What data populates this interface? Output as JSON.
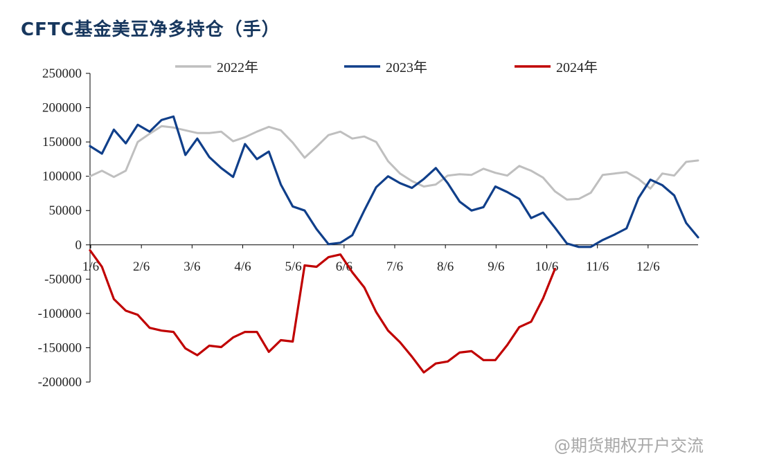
{
  "title": "CFTC基金美豆净多持仓（手）",
  "watermark": "@期货期权开户交流",
  "chart_data": {
    "type": "line",
    "title": "CFTC基金美豆净多持仓（手）",
    "xlabel": "",
    "ylabel": "",
    "x_tick_labels": [
      "1/6",
      "2/6",
      "3/6",
      "4/6",
      "5/6",
      "6/6",
      "7/6",
      "8/6",
      "9/6",
      "10/6",
      "11/6",
      "12/6"
    ],
    "ylim": [
      -200000,
      250000
    ],
    "y_ticks": [
      250000,
      200000,
      150000,
      100000,
      50000,
      0,
      -50000,
      -100000,
      -150000,
      -200000
    ],
    "legend_position": "top",
    "weeks_total": 52,
    "series": [
      {
        "name": "2022年",
        "color": "#bfbfbf",
        "values": [
          100000,
          108000,
          99000,
          108000,
          150000,
          162000,
          173000,
          171000,
          167000,
          163000,
          163000,
          165000,
          151000,
          157000,
          165000,
          172000,
          167000,
          149000,
          127000,
          143000,
          160000,
          165000,
          155000,
          158000,
          150000,
          122000,
          104000,
          93000,
          85000,
          88000,
          101000,
          103000,
          102000,
          111000,
          105000,
          101000,
          115000,
          108000,
          98000,
          78000,
          66000,
          67000,
          76000,
          102000,
          104000,
          106000,
          96000,
          82000,
          104000,
          101000,
          121000,
          123000
        ]
      },
      {
        "name": "2023年",
        "color": "#103f8a",
        "values": [
          144000,
          133000,
          168000,
          148000,
          175000,
          165000,
          182000,
          187000,
          131000,
          155000,
          128000,
          112000,
          99000,
          147000,
          125000,
          136000,
          88000,
          56000,
          50000,
          23000,
          1000,
          3000,
          14000,
          50000,
          84000,
          100000,
          90000,
          83000,
          96000,
          112000,
          90000,
          63000,
          50000,
          55000,
          85000,
          77000,
          67000,
          39000,
          47000,
          25000,
          2000,
          -3000,
          -3000,
          7000,
          15000,
          24000,
          68000,
          95000,
          87000,
          72000,
          32000,
          11000
        ]
      },
      {
        "name": "2024年",
        "color": "#c00000",
        "values": [
          -8000,
          -32000,
          -79000,
          -96000,
          -102000,
          -121000,
          -125000,
          -127000,
          -151000,
          -161000,
          -147000,
          -149000,
          -135000,
          -127000,
          -127000,
          -156000,
          -139000,
          -141000,
          -30000,
          -32000,
          -18000,
          -14000,
          -40000,
          -62000,
          -98000,
          -125000,
          -142000,
          -163000,
          -186000,
          -173000,
          -170000,
          -157000,
          -155000,
          -168000,
          -168000,
          -146000,
          -120000,
          -112000,
          -78000,
          -35000
        ]
      }
    ]
  }
}
